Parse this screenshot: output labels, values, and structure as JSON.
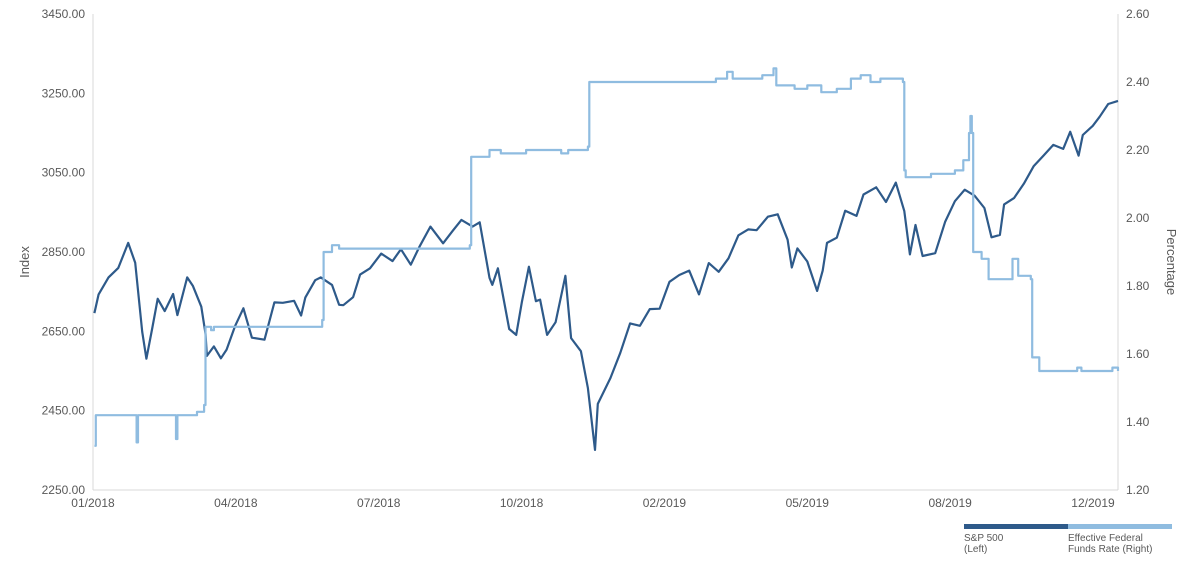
{
  "chart_data": {
    "type": "line",
    "x_ticks": [
      "01/2018",
      "04/2018",
      "07/2018",
      "10/2018",
      "02/2019",
      "05/2019",
      "08/2019",
      "12/2019"
    ],
    "y_left": {
      "label": "Index",
      "min": 2250,
      "max": 3450,
      "ticks": [
        "2250.00",
        "2450.00",
        "2650.00",
        "2850.00",
        "3050.00",
        "3250.00",
        "3450.00"
      ]
    },
    "y_right": {
      "label": "Percentage",
      "min": 1.2,
      "max": 2.6,
      "ticks": [
        "1.20",
        "1.40",
        "1.60",
        "1.80",
        "2.00",
        "2.20",
        "2.40",
        "2.60"
      ]
    },
    "grid": false,
    "legend_position": "bottom-right",
    "series": [
      {
        "name": "S&P 500 (Left)",
        "axis": "left",
        "color": "#2e5a8a",
        "points": [
          [
            "2018-01-02",
            2696
          ],
          [
            "2018-01-05",
            2743
          ],
          [
            "2018-01-12",
            2786
          ],
          [
            "2018-01-19",
            2810
          ],
          [
            "2018-01-26",
            2873
          ],
          [
            "2018-01-31",
            2823
          ],
          [
            "2018-02-05",
            2649
          ],
          [
            "2018-02-08",
            2581
          ],
          [
            "2018-02-12",
            2656
          ],
          [
            "2018-02-16",
            2732
          ],
          [
            "2018-02-21",
            2701
          ],
          [
            "2018-02-27",
            2744
          ],
          [
            "2018-03-02",
            2691
          ],
          [
            "2018-03-09",
            2786
          ],
          [
            "2018-03-13",
            2765
          ],
          [
            "2018-03-19",
            2712
          ],
          [
            "2018-03-22",
            2644
          ],
          [
            "2018-03-23",
            2588
          ],
          [
            "2018-03-28",
            2612
          ],
          [
            "2018-04-02",
            2582
          ],
          [
            "2018-04-06",
            2604
          ],
          [
            "2018-04-12",
            2663
          ],
          [
            "2018-04-18",
            2708
          ],
          [
            "2018-04-24",
            2634
          ],
          [
            "2018-05-03",
            2629
          ],
          [
            "2018-05-10",
            2723
          ],
          [
            "2018-05-16",
            2722
          ],
          [
            "2018-05-24",
            2727
          ],
          [
            "2018-05-29",
            2690
          ],
          [
            "2018-06-01",
            2735
          ],
          [
            "2018-06-08",
            2779
          ],
          [
            "2018-06-12",
            2786
          ],
          [
            "2018-06-20",
            2767
          ],
          [
            "2018-06-25",
            2717
          ],
          [
            "2018-06-28",
            2716
          ],
          [
            "2018-07-05",
            2736
          ],
          [
            "2018-07-10",
            2793
          ],
          [
            "2018-07-17",
            2809
          ],
          [
            "2018-07-25",
            2846
          ],
          [
            "2018-08-02",
            2827
          ],
          [
            "2018-08-08",
            2857
          ],
          [
            "2018-08-15",
            2818
          ],
          [
            "2018-08-21",
            2862
          ],
          [
            "2018-08-29",
            2914
          ],
          [
            "2018-09-07",
            2872
          ],
          [
            "2018-09-14",
            2904
          ],
          [
            "2018-09-20",
            2931
          ],
          [
            "2018-09-28",
            2914
          ],
          [
            "2018-10-03",
            2925
          ],
          [
            "2018-10-10",
            2785
          ],
          [
            "2018-10-12",
            2767
          ],
          [
            "2018-10-16",
            2809
          ],
          [
            "2018-10-24",
            2656
          ],
          [
            "2018-10-29",
            2641
          ],
          [
            "2018-11-02",
            2723
          ],
          [
            "2018-11-07",
            2813
          ],
          [
            "2018-11-12",
            2726
          ],
          [
            "2018-11-15",
            2730
          ],
          [
            "2018-11-20",
            2641
          ],
          [
            "2018-11-26",
            2673
          ],
          [
            "2018-12-03",
            2790
          ],
          [
            "2018-12-07",
            2633
          ],
          [
            "2018-12-14",
            2600
          ],
          [
            "2018-12-19",
            2507
          ],
          [
            "2018-12-24",
            2351
          ],
          [
            "2018-12-26",
            2467
          ],
          [
            "2019-01-04",
            2532
          ],
          [
            "2019-01-11",
            2596
          ],
          [
            "2019-01-18",
            2670
          ],
          [
            "2019-01-25",
            2664
          ],
          [
            "2019-02-01",
            2706
          ],
          [
            "2019-02-08",
            2707
          ],
          [
            "2019-02-15",
            2775
          ],
          [
            "2019-02-22",
            2792
          ],
          [
            "2019-03-01",
            2803
          ],
          [
            "2019-03-08",
            2743
          ],
          [
            "2019-03-15",
            2822
          ],
          [
            "2019-03-22",
            2800
          ],
          [
            "2019-03-29",
            2834
          ],
          [
            "2019-04-05",
            2892
          ],
          [
            "2019-04-12",
            2907
          ],
          [
            "2019-04-18",
            2905
          ],
          [
            "2019-04-26",
            2939
          ],
          [
            "2019-05-03",
            2945
          ],
          [
            "2019-05-10",
            2881
          ],
          [
            "2019-05-13",
            2811
          ],
          [
            "2019-05-17",
            2859
          ],
          [
            "2019-05-24",
            2826
          ],
          [
            "2019-05-31",
            2752
          ],
          [
            "2019-06-04",
            2803
          ],
          [
            "2019-06-07",
            2873
          ],
          [
            "2019-06-14",
            2886
          ],
          [
            "2019-06-20",
            2954
          ],
          [
            "2019-06-28",
            2941
          ],
          [
            "2019-07-03",
            2995
          ],
          [
            "2019-07-12",
            3013
          ],
          [
            "2019-07-19",
            2976
          ],
          [
            "2019-07-26",
            3025
          ],
          [
            "2019-08-01",
            2953
          ],
          [
            "2019-08-05",
            2844
          ],
          [
            "2019-08-09",
            2918
          ],
          [
            "2019-08-14",
            2840
          ],
          [
            "2019-08-23",
            2847
          ],
          [
            "2019-08-30",
            2926
          ],
          [
            "2019-09-06",
            2978
          ],
          [
            "2019-09-13",
            3007
          ],
          [
            "2019-09-20",
            2992
          ],
          [
            "2019-09-27",
            2961
          ],
          [
            "2019-10-02",
            2887
          ],
          [
            "2019-10-08",
            2893
          ],
          [
            "2019-10-11",
            2970
          ],
          [
            "2019-10-18",
            2986
          ],
          [
            "2019-10-25",
            3022
          ],
          [
            "2019-11-01",
            3066
          ],
          [
            "2019-11-08",
            3093
          ],
          [
            "2019-11-15",
            3120
          ],
          [
            "2019-11-22",
            3110
          ],
          [
            "2019-11-27",
            3153
          ],
          [
            "2019-12-03",
            3093
          ],
          [
            "2019-12-06",
            3145
          ],
          [
            "2019-12-13",
            3168
          ],
          [
            "2019-12-18",
            3191
          ],
          [
            "2019-12-24",
            3223
          ],
          [
            "2019-12-31",
            3231
          ]
        ]
      },
      {
        "name": "Effective Federal Funds Rate (Right)",
        "axis": "right",
        "color": "#8fbce0",
        "points": [
          [
            "2018-01-02",
            1.33
          ],
          [
            "2018-01-03",
            1.42
          ],
          [
            "2018-01-31",
            1.42
          ],
          [
            "2018-02-01",
            1.34
          ],
          [
            "2018-02-02",
            1.42
          ],
          [
            "2018-02-28",
            1.42
          ],
          [
            "2018-03-01",
            1.35
          ],
          [
            "2018-03-02",
            1.42
          ],
          [
            "2018-03-15",
            1.42
          ],
          [
            "2018-03-16",
            1.43
          ],
          [
            "2018-03-21",
            1.45
          ],
          [
            "2018-03-22",
            1.68
          ],
          [
            "2018-03-26",
            1.67
          ],
          [
            "2018-03-28",
            1.68
          ],
          [
            "2018-06-13",
            1.7
          ],
          [
            "2018-06-14",
            1.9
          ],
          [
            "2018-06-20",
            1.92
          ],
          [
            "2018-06-25",
            1.91
          ],
          [
            "2018-09-26",
            1.92
          ],
          [
            "2018-09-27",
            2.18
          ],
          [
            "2018-10-10",
            2.2
          ],
          [
            "2018-10-18",
            2.19
          ],
          [
            "2018-11-05",
            2.2
          ],
          [
            "2018-11-30",
            2.19
          ],
          [
            "2018-12-05",
            2.2
          ],
          [
            "2018-12-19",
            2.21
          ],
          [
            "2018-12-20",
            2.4
          ],
          [
            "2019-03-07",
            2.4
          ],
          [
            "2019-03-20",
            2.41
          ],
          [
            "2019-03-28",
            2.43
          ],
          [
            "2019-04-01",
            2.41
          ],
          [
            "2019-04-22",
            2.42
          ],
          [
            "2019-04-30",
            2.44
          ],
          [
            "2019-05-02",
            2.39
          ],
          [
            "2019-05-15",
            2.38
          ],
          [
            "2019-05-24",
            2.39
          ],
          [
            "2019-06-03",
            2.37
          ],
          [
            "2019-06-14",
            2.38
          ],
          [
            "2019-06-24",
            2.41
          ],
          [
            "2019-07-01",
            2.42
          ],
          [
            "2019-07-08",
            2.4
          ],
          [
            "2019-07-15",
            2.41
          ],
          [
            "2019-07-31",
            2.4
          ],
          [
            "2019-08-01",
            2.14
          ],
          [
            "2019-08-02",
            2.12
          ],
          [
            "2019-08-20",
            2.13
          ],
          [
            "2019-09-06",
            2.14
          ],
          [
            "2019-09-12",
            2.17
          ],
          [
            "2019-09-16",
            2.25
          ],
          [
            "2019-09-17",
            2.3
          ],
          [
            "2019-09-18",
            2.25
          ],
          [
            "2019-09-19",
            1.9
          ],
          [
            "2019-09-25",
            1.88
          ],
          [
            "2019-09-30",
            1.82
          ],
          [
            "2019-10-10",
            1.82
          ],
          [
            "2019-10-17",
            1.88
          ],
          [
            "2019-10-21",
            1.83
          ],
          [
            "2019-10-30",
            1.82
          ],
          [
            "2019-10-31",
            1.59
          ],
          [
            "2019-11-05",
            1.55
          ],
          [
            "2019-11-29",
            1.55
          ],
          [
            "2019-12-02",
            1.56
          ],
          [
            "2019-12-05",
            1.55
          ],
          [
            "2019-12-27",
            1.56
          ],
          [
            "2019-12-31",
            1.55
          ]
        ]
      }
    ]
  },
  "legend": {
    "items": [
      {
        "line1": "S&P 500",
        "line2": "(Left)",
        "color": "#2e5a8a"
      },
      {
        "line1": "Effective Federal",
        "line2": "Funds Rate (Right)",
        "color": "#8fbce0"
      }
    ]
  }
}
